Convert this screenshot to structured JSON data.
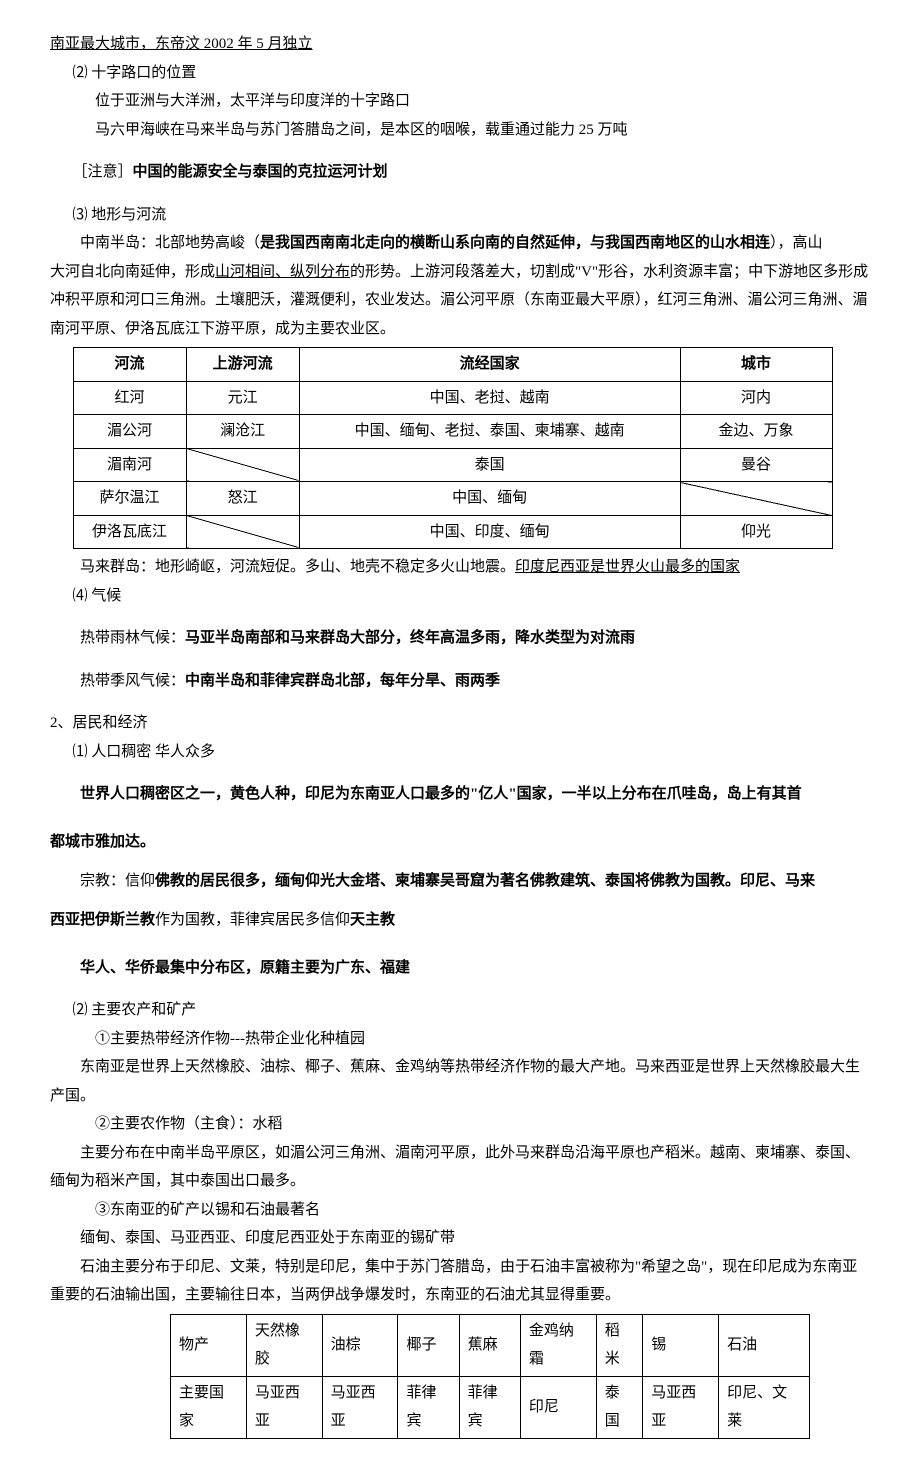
{
  "line_top": "南亚最大城市，东帝汶 2002 年 5 月独立",
  "sec_1_2_title": "⑵ 十字路口的位置",
  "sec_1_2_l1": "位于亚洲与大洋洲，太平洋与印度洋的十字路口",
  "sec_1_2_l2": "马六甲海峡在马来半岛与苏门答腊岛之间，是本区的咽喉，载重通过能力 25 万吨",
  "note_prefix": "［注意］",
  "note_body": "中国的能源安全与泰国的克拉运河计划",
  "sec_1_3_title": "⑶ 地形与河流",
  "sec_1_3_p1_a": "中南半岛：北部地势高峻（",
  "sec_1_3_p1_b": "是我国西南南北走向的横断山系向南的自然延伸，与我国西南地区的山水相连",
  "sec_1_3_p1_c": "），高山",
  "sec_1_3_p2_a": "大河自北向南延伸，形成",
  "sec_1_3_p2_b": "山河相间、纵列分布",
  "sec_1_3_p2_c": "的形势。上游河段落差大，切割成\"V\"形谷，水利资源丰富；中下游地区多形成冲积平原和河口三角洲。土壤肥沃，灌溉便利，农业发达。湄公河平原（东南亚最大平原），红河三角洲、湄公河三角洲、湄南河平原、伊洛瓦底江下游平原，成为主要农业区。",
  "rivers": {
    "headers": [
      "河流",
      "上游河流",
      "流经国家",
      "城市"
    ],
    "rows": [
      {
        "r": "红河",
        "u": "元江",
        "c": "中国、老挝、越南",
        "city": "河内",
        "u_diag": false,
        "city_diag": false
      },
      {
        "r": "湄公河",
        "u": "澜沧江",
        "c": "中国、缅甸、老挝、泰国、柬埔寨、越南",
        "city": "金边、万象",
        "u_diag": false,
        "city_diag": false
      },
      {
        "r": "湄南河",
        "u": "",
        "c": "泰国",
        "city": "曼谷",
        "u_diag": true,
        "city_diag": false
      },
      {
        "r": "萨尔温江",
        "u": "怒江",
        "c": "中国、缅甸",
        "city": "",
        "u_diag": false,
        "city_diag": true
      },
      {
        "r": "伊洛瓦底江",
        "u": "",
        "c": "中国、印度、缅甸",
        "city": "仰光",
        "u_diag": true,
        "city_diag": false
      }
    ]
  },
  "sec_1_3_p3_a": "马来群岛：地形崎岖，河流短促。多山、地壳不稳定多火山地震。",
  "sec_1_3_p3_b": "印度尼西亚是世界火山最多的国家",
  "sec_1_4_title": "⑷ 气候",
  "climate_1_a": "热带雨林气候：",
  "climate_1_b": "马亚半岛南部和马来群岛大部分，终年高温多雨，降水类型为对流雨",
  "climate_2_a": "热带季风气候：",
  "climate_2_b": "中南半岛和菲律宾群岛北部，每年分旱、雨两季",
  "sec2_title": "2、居民和经济",
  "sec2_1_title": "⑴ 人口稠密 华人众多",
  "sec2_1_p1": "世界人口稠密区之一，黄色人种，印尼为东南亚人口最多的\"亿人\"国家，一半以上分布在爪哇岛，岛上有其首",
  "sec2_1_p1b": "都城市雅加达。",
  "sec2_1_rel_a": "宗教：信仰",
  "sec2_1_rel_b": "佛教",
  "sec2_1_rel_c": "的居民很多，缅甸仰光大金塔、柬埔寨吴哥窟为著名佛教建筑、泰国将佛教为国教。印尼、马来",
  "sec2_1_rel_d": "西亚把",
  "sec2_1_rel_e": "伊斯兰教",
  "sec2_1_rel_f": "作为国教，菲律宾居民多信仰",
  "sec2_1_rel_g": "天主教",
  "sec2_1_hua": "华人、华侨最集中分布区，原籍主要为广东、福建",
  "sec2_2_title": "⑵ 主要农产和矿产",
  "sec2_2_i1_t": "①主要热带经济作物---热带企业化种植园",
  "sec2_2_i1_b": "东南亚是世界上天然橡胶、油棕、椰子、蕉麻、金鸡纳等热带经济作物的最大产地。马来西亚是世界上天然橡胶最大生产国。",
  "sec2_2_i2_t": "②主要农作物（主食）：水稻",
  "sec2_2_i2_b": "主要分布在中南半岛平原区，如湄公河三角洲、湄南河平原，此外马来群岛沿海平原也产稻米。越南、柬埔寨、泰国、缅甸为稻米产国，其中泰国出口最多。",
  "sec2_2_i3_t": "③东南亚的矿产以锡和石油最著名",
  "sec2_2_i3_b1": "缅甸、泰国、马亚西亚、印度尼西亚处于东南亚的锡矿带",
  "sec2_2_i3_b2": "石油主要分布于印尼、文莱，特别是印尼，集中于苏门答腊岛，由于石油丰富被称为\"希望之岛\"，现在印尼成为东南亚重要的石油输出国，主要输往日本，当两伊战争爆发时，东南亚的石油尤其显得重要。",
  "products": {
    "row1": [
      "物产",
      "天然橡胶",
      "油棕",
      "椰子",
      "蕉麻",
      "金鸡纳霜",
      "稻米",
      "锡",
      "石油"
    ],
    "row2": [
      "主要国家",
      "马亚西亚",
      "马亚西亚",
      "菲律宾",
      "菲律宾",
      "印尼",
      "泰国",
      "马亚西亚",
      "印尼、文莱"
    ]
  }
}
